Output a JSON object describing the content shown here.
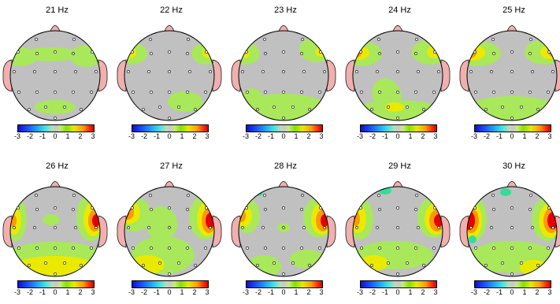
{
  "panels": [
    {
      "title": "21 Hz"
    },
    {
      "title": "22 Hz"
    },
    {
      "title": "23 Hz"
    },
    {
      "title": "24 Hz"
    },
    {
      "title": "25 Hz"
    },
    {
      "title": "26 Hz"
    },
    {
      "title": "27 Hz"
    },
    {
      "title": "28 Hz"
    },
    {
      "title": "29 Hz"
    },
    {
      "title": "30 Hz"
    }
  ],
  "colorbar": {
    "tick_labels": [
      "-3",
      "-2",
      "-1",
      "0",
      "1",
      "2",
      "3"
    ]
  },
  "colors": {
    "neutral": "#c0c0c0",
    "light_green": "#a8e85a",
    "yellow": "#eaea00",
    "orange": "#ff9900",
    "red": "#e60000",
    "cyan": "#33dd99",
    "ear": "#f0b0b0"
  }
}
